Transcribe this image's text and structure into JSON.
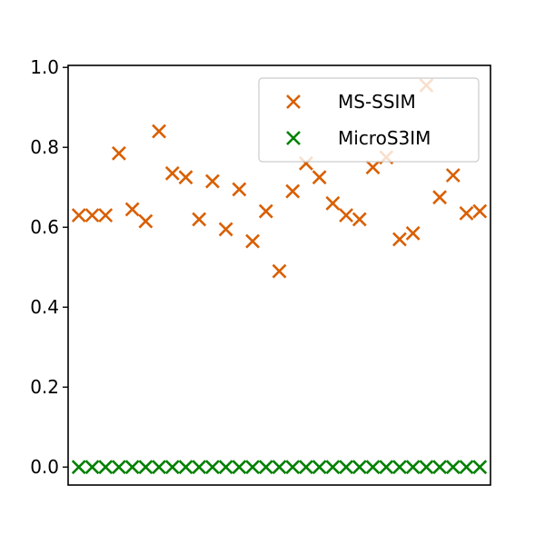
{
  "chart_data": {
    "type": "scatter",
    "title": "",
    "xlabel": "",
    "ylabel": "",
    "ylim": [
      -0.045,
      1.005
    ],
    "xlim": [
      -0.8,
      30.8
    ],
    "grid": false,
    "legend_position": "top-right",
    "y_ticks": [
      "0.0",
      "0.2",
      "0.4",
      "0.6",
      "0.8",
      "1.0"
    ],
    "x": [
      0,
      1,
      2,
      3,
      4,
      5,
      6,
      7,
      8,
      9,
      10,
      11,
      12,
      13,
      14,
      15,
      16,
      17,
      18,
      19,
      20,
      21,
      22,
      23,
      24,
      25,
      26,
      27,
      28,
      29,
      30
    ],
    "series": [
      {
        "name": "MS-SSIM",
        "color": "#d95f02",
        "marker": "x",
        "values": [
          0.63,
          0.63,
          0.63,
          0.785,
          0.645,
          0.615,
          0.84,
          0.735,
          0.725,
          0.62,
          0.715,
          0.595,
          0.695,
          0.565,
          0.64,
          0.49,
          0.69,
          0.76,
          0.725,
          0.66,
          0.63,
          0.62,
          0.75,
          0.775,
          0.57,
          0.585,
          0.955,
          0.675,
          0.73,
          0.635,
          0.64
        ]
      },
      {
        "name": "MicroS3IM",
        "color": "#008000",
        "marker": "x",
        "values": [
          0,
          0,
          0,
          0,
          0,
          0,
          0,
          0,
          0,
          0,
          0,
          0,
          0,
          0,
          0,
          0,
          0,
          0,
          0,
          0,
          0,
          0,
          0,
          0,
          0,
          0,
          0,
          0,
          0,
          0,
          0
        ]
      }
    ]
  }
}
